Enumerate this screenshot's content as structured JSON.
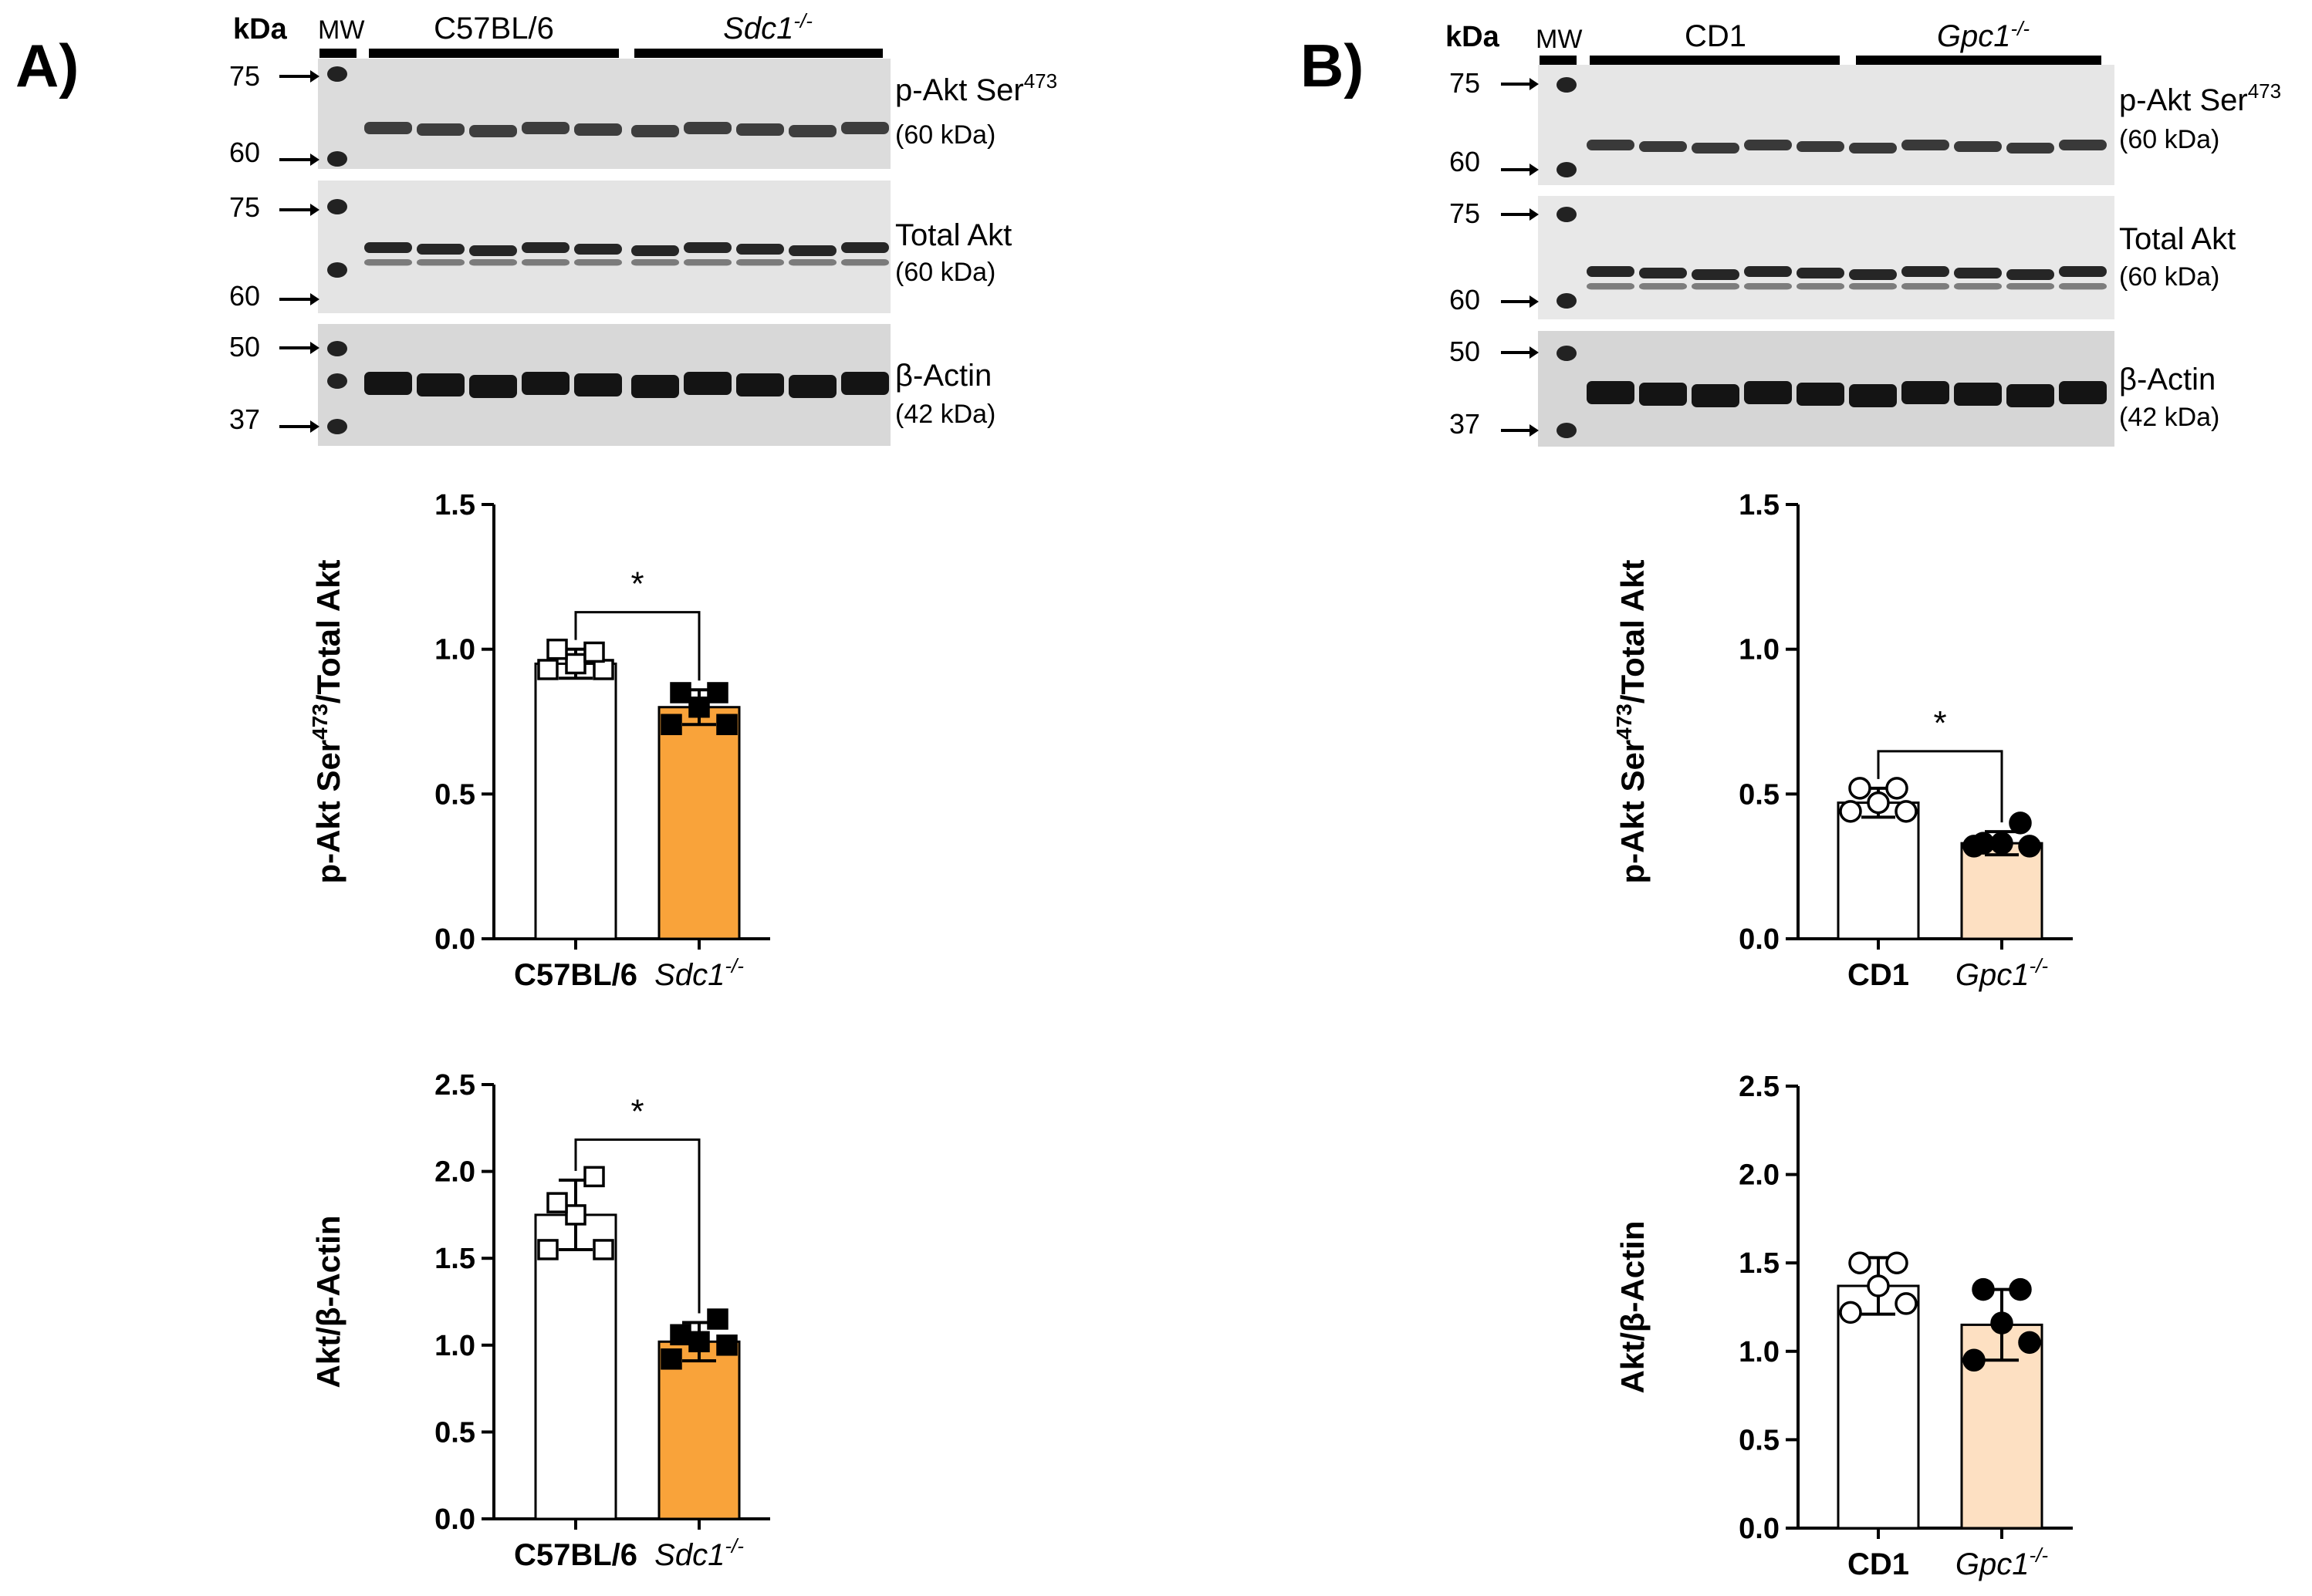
{
  "panels": [
    {
      "label": "A)",
      "blot": {
        "kda_label": "kDa",
        "mw_label": "MW",
        "group1": "C57BL/6",
        "group2": "Sdc1",
        "group2_sup": "-/-",
        "rows": [
          {
            "name": "p-Akt Ser",
            "name_sup": "473",
            "size": "(60 kDa)",
            "markers": [
              "75",
              "60"
            ]
          },
          {
            "name": "Total Akt",
            "name_sup": "",
            "size": "(60 kDa)",
            "markers": [
              "75",
              "60"
            ]
          },
          {
            "name": "β-Actin",
            "name_sup": "",
            "size": "(42 kDa)",
            "markers": [
              "50",
              "37"
            ]
          }
        ]
      }
    },
    {
      "label": "B)",
      "blot": {
        "kda_label": "kDa",
        "mw_label": "MW",
        "group1": "CD1",
        "group2": "Gpc1",
        "group2_sup": "-/-",
        "rows": [
          {
            "name": "p-Akt Ser",
            "name_sup": "473",
            "size": "(60 kDa)",
            "markers": [
              "75",
              "60"
            ]
          },
          {
            "name": "Total Akt",
            "name_sup": "",
            "size": "(60 kDa)",
            "markers": [
              "75",
              "60"
            ]
          },
          {
            "name": "β-Actin",
            "name_sup": "",
            "size": "(42 kDa)",
            "markers": [
              "50",
              "37"
            ]
          }
        ]
      }
    }
  ],
  "chart_data": [
    {
      "panel": "A",
      "type": "bar",
      "ylabel": "p-Akt Ser",
      "ylabel_sup": "473",
      "ylabel_suffix": "/Total Akt",
      "ylim": [
        0,
        1.5
      ],
      "yticks": [
        "0.0",
        "0.5",
        "1.0",
        "1.5"
      ],
      "ytick_values": [
        0,
        0.5,
        1.0,
        1.5
      ],
      "categories": [
        "C57BL/6",
        "Sdc1"
      ],
      "category_sup": [
        "",
        "-/-"
      ],
      "bar_colors": [
        "#ffffff",
        "#f9a33a"
      ],
      "marker": "square",
      "values": [
        0.95,
        0.8
      ],
      "errors": [
        0.05,
        0.06
      ],
      "points": [
        [
          0.93,
          0.93,
          0.95,
          1.0,
          0.99
        ],
        [
          0.74,
          0.74,
          0.8,
          0.85,
          0.85
        ]
      ],
      "significance": "*"
    },
    {
      "panel": "A",
      "type": "bar",
      "ylabel": "Akt/β-Actin",
      "ylabel_sup": "",
      "ylabel_suffix": "",
      "ylim": [
        0,
        2.5
      ],
      "yticks": [
        "0.0",
        "0.5",
        "1.0",
        "1.5",
        "2.0",
        "2.5"
      ],
      "ytick_values": [
        0,
        0.5,
        1.0,
        1.5,
        2.0,
        2.5
      ],
      "categories": [
        "C57BL/6",
        "Sdc1"
      ],
      "category_sup": [
        "",
        "-/-"
      ],
      "bar_colors": [
        "#ffffff",
        "#f9a33a"
      ],
      "marker": "square",
      "values": [
        1.75,
        1.02
      ],
      "errors": [
        0.2,
        0.11
      ],
      "points": [
        [
          1.55,
          1.55,
          1.75,
          1.82,
          1.97
        ],
        [
          0.92,
          1.0,
          1.02,
          1.06,
          1.15
        ]
      ],
      "significance": "*"
    },
    {
      "panel": "B",
      "type": "bar",
      "ylabel": "p-Akt Ser",
      "ylabel_sup": "473",
      "ylabel_suffix": "/Total Akt",
      "ylim": [
        0,
        1.5
      ],
      "yticks": [
        "0.0",
        "0.5",
        "1.0",
        "1.5"
      ],
      "ytick_values": [
        0,
        0.5,
        1.0,
        1.5
      ],
      "categories": [
        "CD1",
        "Gpc1"
      ],
      "category_sup": [
        "",
        "-/-"
      ],
      "bar_colors": [
        "#ffffff",
        "#fde0c2"
      ],
      "marker": "circle",
      "values": [
        0.47,
        0.33
      ],
      "errors": [
        0.05,
        0.04
      ],
      "points": [
        [
          0.44,
          0.44,
          0.47,
          0.52,
          0.52
        ],
        [
          0.32,
          0.32,
          0.33,
          0.33,
          0.4
        ]
      ],
      "significance": "*"
    },
    {
      "panel": "B",
      "type": "bar",
      "ylabel": "Akt/β-Actin",
      "ylabel_sup": "",
      "ylabel_suffix": "",
      "ylim": [
        0,
        2.5
      ],
      "yticks": [
        "0.0",
        "0.5",
        "1.0",
        "1.5",
        "2.0",
        "2.5"
      ],
      "ytick_values": [
        0,
        0.5,
        1.0,
        1.5,
        2.0,
        2.5
      ],
      "categories": [
        "CD1",
        "Gpc1"
      ],
      "category_sup": [
        "",
        "-/-"
      ],
      "bar_colors": [
        "#ffffff",
        "#fde0c2"
      ],
      "marker": "circle",
      "values": [
        1.37,
        1.15
      ],
      "errors": [
        0.16,
        0.2
      ],
      "points": [
        [
          1.22,
          1.27,
          1.37,
          1.5,
          1.5
        ],
        [
          0.95,
          1.05,
          1.16,
          1.35,
          1.35
        ]
      ],
      "significance": ""
    }
  ]
}
